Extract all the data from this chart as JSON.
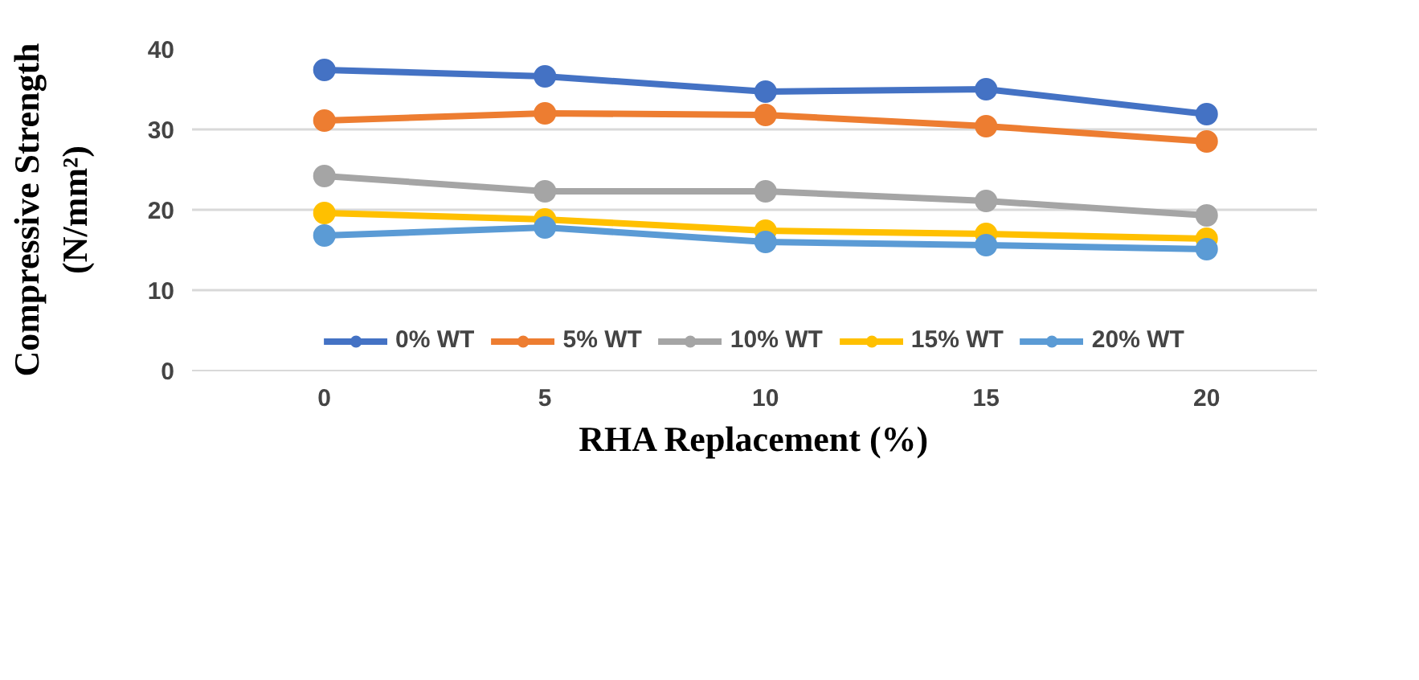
{
  "chart_data": {
    "type": "line",
    "xlabel": "RHA Replacement (%)",
    "ylabel": "Compressive Strength\n(N/mm²)",
    "x": [
      0,
      5,
      10,
      15,
      20
    ],
    "xlim": [
      -3,
      22.5
    ],
    "xticks": [
      0,
      5,
      10,
      15,
      20
    ],
    "ylim": [
      0,
      40
    ],
    "yticks": [
      0,
      10,
      20,
      30,
      40
    ],
    "grid": "y",
    "legend": "bottom",
    "marker": "circle",
    "line_style": "solid",
    "series": [
      {
        "name": "0% WT",
        "color": "#4472c4",
        "values": [
          37.4,
          36.6,
          34.7,
          35.0,
          31.9
        ]
      },
      {
        "name": "5% WT",
        "color": "#ed7d31",
        "values": [
          31.1,
          32.0,
          31.8,
          30.4,
          28.5
        ]
      },
      {
        "name": "10% WT",
        "color": "#a5a5a5",
        "values": [
          24.2,
          22.3,
          22.3,
          21.1,
          19.3
        ]
      },
      {
        "name": "15% WT",
        "color": "#ffc000",
        "values": [
          19.6,
          18.8,
          17.4,
          17.0,
          16.4
        ]
      },
      {
        "name": "20% WT",
        "color": "#5b9bd5",
        "values": [
          16.8,
          17.8,
          16.0,
          15.6,
          15.1
        ]
      }
    ]
  }
}
